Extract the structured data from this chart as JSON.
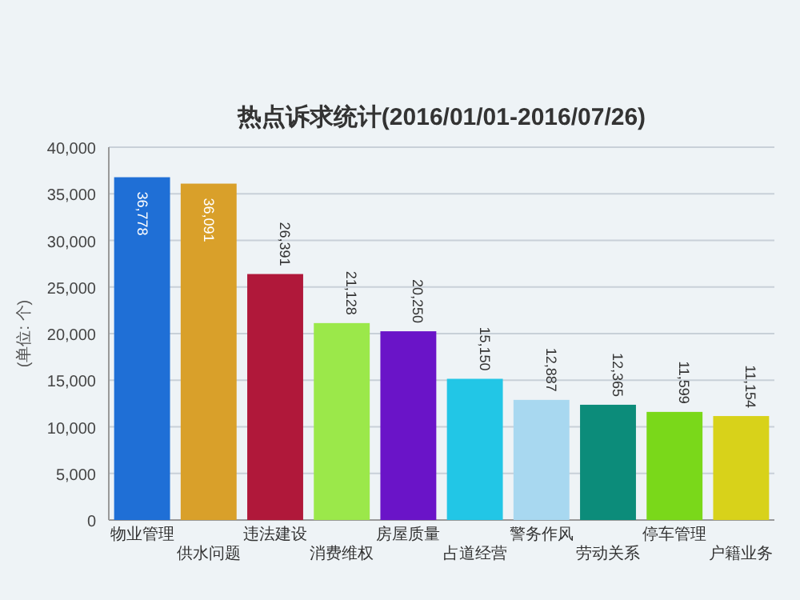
{
  "chart_data": {
    "type": "bar",
    "title": "热点诉求统计(2016/01/01-2016/07/26)",
    "ylabel": "(单位: 个)",
    "categories": [
      "物业管理",
      "供水问题",
      "违法建设",
      "消费维权",
      "房屋质量",
      "占道经营",
      "警务作风",
      "劳动关系",
      "停车管理",
      "户籍业务"
    ],
    "values": [
      36778,
      36091,
      26391,
      21128,
      20250,
      15150,
      12887,
      12365,
      11599,
      11154
    ],
    "colors": [
      "#1f6fd6",
      "#d9a02a",
      "#b0183a",
      "#9be84a",
      "#6a14c8",
      "#22c6e6",
      "#a8d8f0",
      "#0c8c7a",
      "#7ad81a",
      "#d8d21a"
    ],
    "value_labels": [
      "36,778",
      "36,091",
      "26,391",
      "21,128",
      "20,250",
      "15,150",
      "12,887",
      "12,365",
      "11,599",
      "11,154"
    ],
    "ylim": [
      0,
      40000
    ],
    "yticks": [
      {
        "value": 0,
        "label": "0"
      },
      {
        "value": 5000,
        "label": "5,000"
      },
      {
        "value": 10000,
        "label": "10,000"
      },
      {
        "value": 15000,
        "label": "15,000"
      },
      {
        "value": 20000,
        "label": "20,000"
      },
      {
        "value": 25000,
        "label": "25,000"
      },
      {
        "value": 30000,
        "label": "30,000"
      },
      {
        "value": 35000,
        "label": "35,000"
      },
      {
        "value": 40000,
        "label": "40,000"
      }
    ],
    "grid": "y"
  }
}
